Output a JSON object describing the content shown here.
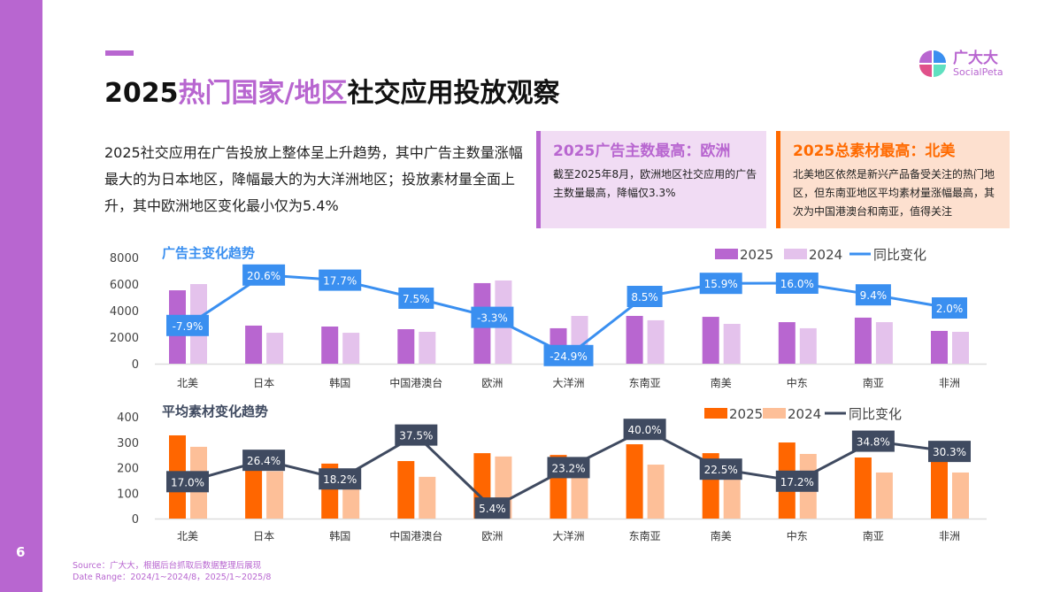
{
  "page_number": "6",
  "title": {
    "highlight_year": "2025",
    "highlight": "热门国家/地区",
    "rest": "社交应用投放观察"
  },
  "logo": {
    "cn": "广大大",
    "en": "SocialPeta"
  },
  "intro": "2025社交应用在广告投放上整体呈上升趋势，其中广告主数量涨幅最大的为日本地区，降幅最大的为大洋洲地区；投放素材量全面上升，其中欧洲地区变化最小仅为5.4%",
  "box1": {
    "title": "2025广告主数最高：欧洲",
    "text": "截至2025年8月，欧洲地区社交应用的广告主数量最高，降幅仅3.3%"
  },
  "box2": {
    "title": "2025总素材最高：北美",
    "text": "北美地区依然是新兴产品备受关注的热门地区，但东南亚地区平均素材量涨幅最高，其次为中国港澳台和南亚，值得关注"
  },
  "source": "Source：广大大，根据后台抓取后数据整理后展现",
  "date_range": "Date Range：2024/1~2024/8，2025/1~2025/8",
  "chart_data": [
    {
      "type": "bar",
      "title": "广告主变化趋势",
      "categories": [
        "北美",
        "日本",
        "韩国",
        "中国港澳台",
        "欧洲",
        "大洋洲",
        "东南亚",
        "南美",
        "中东",
        "南亚",
        "非洲"
      ],
      "ylim": [
        0,
        8000
      ],
      "yticks": [
        0,
        2000,
        4000,
        6000,
        8000
      ],
      "legend_placement": "top-right",
      "series": [
        {
          "name": "2025",
          "color": "#b866d0",
          "values": [
            5530,
            2870,
            2800,
            2600,
            6070,
            2670,
            3600,
            3530,
            3130,
            3470,
            2470
          ]
        },
        {
          "name": "2024",
          "color": "#e4c2ec",
          "values": [
            6000,
            2330,
            2330,
            2400,
            6270,
            3600,
            3270,
            3000,
            2670,
            3130,
            2400
          ]
        }
      ],
      "line": {
        "name": "同比变化",
        "color": "#3a8ff0",
        "values": [
          -7.9,
          20.6,
          17.7,
          7.5,
          -3.3,
          -24.9,
          8.5,
          15.9,
          16.0,
          9.4,
          2.0
        ],
        "labels": [
          "-7.9%",
          "20.6%",
          "17.7%",
          "7.5%",
          "-3.3%",
          "-24.9%",
          "8.5%",
          "15.9%",
          "16.0%",
          "9.4%",
          "2.0%"
        ]
      }
    },
    {
      "type": "bar",
      "title": "平均素材变化趋势",
      "categories": [
        "北美",
        "日本",
        "韩国",
        "中国港澳台",
        "欧洲",
        "大洋洲",
        "东南亚",
        "南美",
        "中东",
        "南亚",
        "非洲"
      ],
      "ylim": [
        0,
        400
      ],
      "yticks": [
        0,
        100,
        200,
        300,
        400
      ],
      "legend_placement": "top-right",
      "series": [
        {
          "name": "2025",
          "color": "#ff6600",
          "values": [
            327,
            235,
            216,
            226,
            257,
            250,
            292,
            257,
            299,
            240,
            235
          ]
        },
        {
          "name": "2024",
          "color": "#fdbf98",
          "values": [
            282,
            186,
            184,
            164,
            244,
            203,
            212,
            210,
            254,
            181,
            181
          ]
        }
      ],
      "line": {
        "name": "同比变化",
        "color": "#3f4a60",
        "values": [
          17.0,
          26.4,
          18.2,
          37.5,
          5.4,
          23.2,
          40.0,
          22.5,
          17.2,
          34.8,
          30.3
        ],
        "labels": [
          "17.0%",
          "26.4%",
          "18.2%",
          "37.5%",
          "5.4%",
          "23.2%",
          "40.0%",
          "22.5%",
          "17.2%",
          "34.8%",
          "30.3%"
        ]
      }
    }
  ]
}
